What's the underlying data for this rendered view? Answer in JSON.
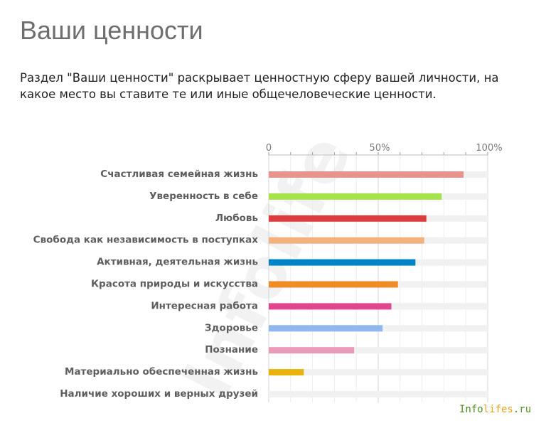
{
  "header": {
    "title": "Ваши ценности",
    "description": "Раздел \"Ваши ценности\" раскрывает ценностную сферу вашей личности, на какое место вы ставите те или иные общечеловеческие ценности."
  },
  "watermark": {
    "text": "Infolife"
  },
  "brand": {
    "part1": "Info",
    "part2": "lifes",
    "part3": ".ru"
  },
  "chart_data": {
    "type": "bar",
    "orientation": "horizontal",
    "categories": [
      "Счастливая семейная жизнь",
      "Уверенность в себе",
      "Любовь",
      "Свобода как независимость в поступках",
      "Активная, деятельная жизнь",
      "Красота природы и искусства",
      "Интересная работа",
      "Здоровье",
      "Познание",
      "Материально обеспеченная жизнь",
      "Наличие хороших и верных друзей"
    ],
    "values": [
      89,
      79,
      72,
      71,
      67,
      59,
      56,
      52,
      39,
      16,
      0
    ],
    "colors": [
      "#e8948c",
      "#a6e24a",
      "#de3b3e",
      "#f2b27d",
      "#0084c8",
      "#f08c28",
      "#e0458d",
      "#8fb9ee",
      "#e89ab8",
      "#eab20c",
      "#dddddd"
    ],
    "xlim": [
      0,
      100
    ],
    "ticks": [
      "0",
      "50%",
      "100%"
    ],
    "grid": true
  }
}
